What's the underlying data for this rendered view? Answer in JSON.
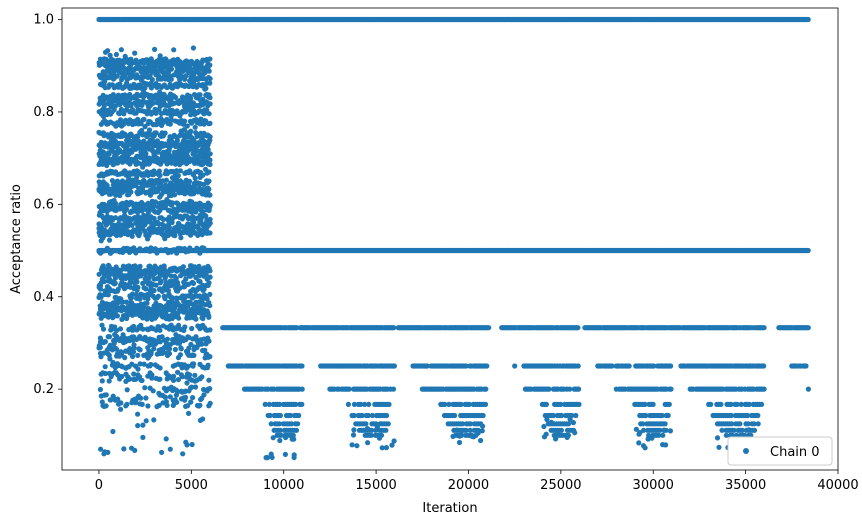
{
  "chart_data": {
    "type": "scatter",
    "xlabel": "Iteration",
    "ylabel": "Acceptance ratio",
    "xlim": [
      -2000,
      40000
    ],
    "ylim": [
      0.025,
      1.025
    ],
    "x_ticks": [
      0,
      5000,
      10000,
      15000,
      20000,
      25000,
      30000,
      35000,
      40000
    ],
    "y_ticks": [
      0.2,
      0.4,
      0.6,
      0.8,
      1.0
    ],
    "x_tick_labels": [
      "0",
      "5000",
      "10000",
      "15000",
      "20000",
      "25000",
      "30000",
      "35000",
      "40000"
    ],
    "y_tick_labels": [
      "0.2",
      "0.4",
      "0.6",
      "0.8",
      "1.0"
    ],
    "grid": false,
    "legend": {
      "position": "lower right",
      "entries": [
        "Chain 0"
      ]
    },
    "series": [
      {
        "name": "Chain 0",
        "color": "#1f77b4",
        "marker": "circle",
        "description_of_points": "dense acceptance ratios per iteration 0-38400",
        "bands": [
          {
            "y": 1.0,
            "x_range": [
              0,
              38400
            ],
            "density": "dense"
          },
          {
            "y": 0.5,
            "x_range": [
              0,
              38400
            ],
            "density": "dense"
          },
          {
            "y": 0.333,
            "x_range": [
              6700,
              38400
            ],
            "density": "dense_with_gaps"
          },
          {
            "y": 0.25,
            "x_range": [
              7000,
              38400
            ],
            "density": "sparse_segments"
          },
          {
            "y": 0.2,
            "x_range": [
              7800,
              38400
            ],
            "density": "sparse_segments"
          },
          {
            "y": 0.167,
            "x_range": [
              8000,
              36000
            ],
            "density": "clusters"
          },
          {
            "y": 0.143,
            "x_range": [
              9000,
              36000
            ],
            "density": "clusters"
          }
        ],
        "burn_in": {
          "x_range": [
            0,
            6000
          ],
          "y_range": [
            0.05,
            0.95
          ]
        },
        "clusters_low": [
          {
            "x_range": [
              9000,
              11000
            ],
            "y_min": 0.05
          },
          {
            "x_range": [
              13500,
              16000
            ],
            "y_min": 0.07
          },
          {
            "x_range": [
              18500,
              21000
            ],
            "y_min": 0.07
          },
          {
            "x_range": [
              24000,
              26000
            ],
            "y_min": 0.09
          },
          {
            "x_range": [
              29000,
              31000
            ],
            "y_min": 0.07
          },
          {
            "x_range": [
              33000,
              36000
            ],
            "y_min": 0.07
          }
        ]
      }
    ]
  }
}
